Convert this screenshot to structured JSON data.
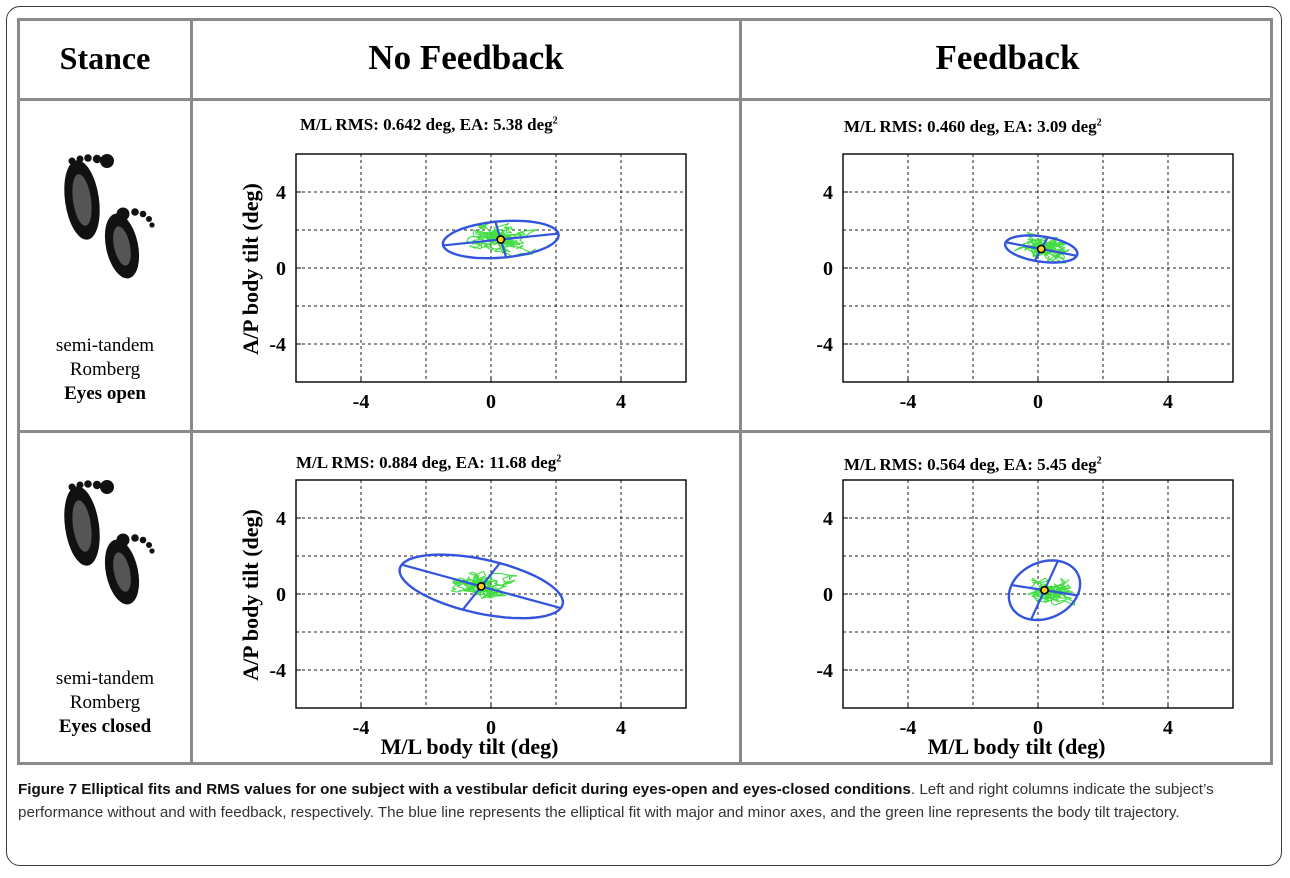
{
  "table": {
    "headers": {
      "stance": "Stance",
      "no_feedback": "No Feedback",
      "feedback": "Feedback"
    },
    "rows": [
      {
        "stance": "semi-tandem",
        "stance_line2": "Romberg",
        "condition": "Eyes open"
      },
      {
        "stance": "semi-tandem",
        "stance_line2": "Romberg",
        "condition": "Eyes closed"
      }
    ]
  },
  "axes": {
    "xlabel": "M/L body tilt (deg)",
    "ylabel": "A/P body tilt (deg)",
    "xlim": [
      -6,
      6
    ],
    "ylim": [
      -6,
      6
    ],
    "ticks": [
      -4,
      0,
      4
    ],
    "grid": true
  },
  "colors": {
    "ellipse": "#3355dd",
    "trajectory": "#44dd44",
    "center_fill": "#ffd21a",
    "border": "#8a8a8a"
  },
  "chart_data": [
    {
      "type": "scatter",
      "panel": "eyes-open-no-feedback",
      "title": "M/L RMS: 0.642 deg, EA: 5.38 deg",
      "title_sup": "2",
      "rms_ml_deg": 0.642,
      "ea_deg2": 5.38,
      "center": [
        0.3,
        1.5
      ],
      "ellipse": {
        "semi_major": 1.8,
        "semi_minor": 0.95,
        "angle_deg": 10
      },
      "trajectory_spread": [
        1.3,
        0.8
      ]
    },
    {
      "type": "scatter",
      "panel": "eyes-open-feedback",
      "title": "M/L RMS: 0.460 deg, EA: 3.09 deg",
      "title_sup": "2",
      "rms_ml_deg": 0.46,
      "ea_deg2": 3.09,
      "center": [
        0.1,
        1.0
      ],
      "ellipse": {
        "semi_major": 1.15,
        "semi_minor": 0.65,
        "angle_deg": -18
      },
      "trajectory_spread": [
        0.8,
        0.6
      ]
    },
    {
      "type": "scatter",
      "panel": "eyes-closed-no-feedback",
      "title": "M/L RMS: 0.884 deg, EA: 11.68 deg",
      "title_sup": "2",
      "rms_ml_deg": 0.884,
      "ea_deg2": 11.68,
      "center": [
        -0.3,
        0.4
      ],
      "ellipse": {
        "semi_major": 2.7,
        "semi_minor": 1.35,
        "angle_deg": -25
      },
      "trajectory_spread": [
        1.7,
        0.9
      ]
    },
    {
      "type": "scatter",
      "panel": "eyes-closed-feedback",
      "title": "M/L RMS: 0.564 deg, EA: 5.45 deg",
      "title_sup": "2",
      "rms_ml_deg": 0.564,
      "ea_deg2": 5.45,
      "center": [
        0.2,
        0.2
      ],
      "ellipse": {
        "semi_major": 1.6,
        "semi_minor": 1.05,
        "angle_deg": 75
      },
      "trajectory_spread": [
        1.0,
        1.0
      ]
    }
  ],
  "caption": {
    "title": "Figure 7 Elliptical fits and RMS values for one subject with a vestibular deficit during eyes-open and eyes-closed conditions",
    "text": ". Left and right columns indicate the subject’s performance without and with feedback, respectively. The blue line represents the elliptical fit with major and minor axes, and the green line represents the body tilt trajectory."
  }
}
